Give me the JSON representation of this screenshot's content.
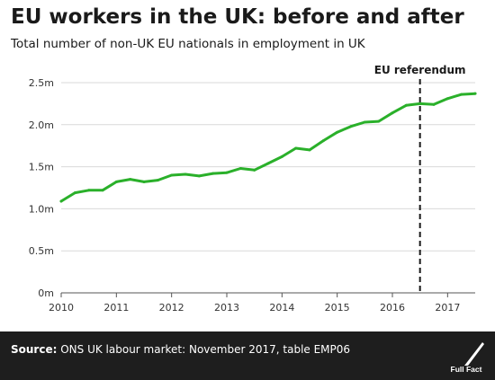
{
  "header": {
    "title": "EU workers in the UK: before and after",
    "subtitle": "Total number of non-UK EU nationals in employment in UK"
  },
  "footer": {
    "source_label": "Source:",
    "source_text": " ONS UK labour market: November 2017, table EMP06",
    "brand": "Full Fact"
  },
  "colors": {
    "line": "#2ab02a",
    "grid": "#d9d9d9",
    "footer_bg": "#1e1e1e"
  },
  "chart_data": {
    "type": "line",
    "title": "EU workers in the UK: before and after",
    "subtitle": "Total number of non-UK EU nationals in employment in UK",
    "xlabel": "",
    "ylabel": "",
    "xlim": [
      2010,
      2017.5
    ],
    "ylim": [
      0,
      2.5
    ],
    "y_unit": "m",
    "xticks": [
      2010,
      2011,
      2012,
      2013,
      2014,
      2015,
      2016,
      2017
    ],
    "xtick_labels": [
      "2010",
      "2011",
      "2012",
      "2013",
      "2014",
      "2015",
      "2016",
      "2017"
    ],
    "yticks": [
      0,
      0.5,
      1.0,
      1.5,
      2.0,
      2.5
    ],
    "ytick_labels": [
      "0m",
      "0.5m",
      "1.0m",
      "1.5m",
      "2.0m",
      "2.5m"
    ],
    "grid": "horizontal",
    "legend": "none",
    "x": [
      2010.0,
      2010.25,
      2010.5,
      2010.75,
      2011.0,
      2011.25,
      2011.5,
      2011.75,
      2012.0,
      2012.25,
      2012.5,
      2012.75,
      2013.0,
      2013.25,
      2013.5,
      2013.75,
      2014.0,
      2014.25,
      2014.5,
      2014.75,
      2015.0,
      2015.25,
      2015.5,
      2015.75,
      2016.0,
      2016.25,
      2016.5,
      2016.75,
      2017.0,
      2017.25,
      2017.5
    ],
    "values": [
      1.09,
      1.19,
      1.22,
      1.22,
      1.32,
      1.35,
      1.32,
      1.34,
      1.4,
      1.41,
      1.39,
      1.42,
      1.43,
      1.48,
      1.46,
      1.54,
      1.62,
      1.72,
      1.7,
      1.81,
      1.91,
      1.98,
      2.03,
      2.04,
      2.14,
      2.23,
      2.25,
      2.24,
      2.31,
      2.36,
      2.37
    ],
    "annotations": [
      {
        "type": "vline",
        "x": 2016.5,
        "label": "EU referendum",
        "style": "dashed"
      }
    ]
  }
}
